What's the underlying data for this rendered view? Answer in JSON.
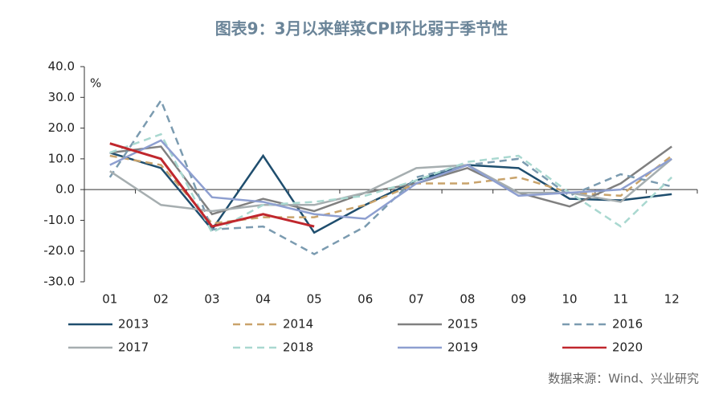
{
  "chart_data": {
    "type": "line",
    "title": "图表9：3月以来鲜菜CPI环比弱于季节性",
    "y_unit": "%",
    "source": "数据来源：Wind、兴业研究",
    "categories": [
      "01",
      "02",
      "03",
      "04",
      "05",
      "06",
      "07",
      "08",
      "09",
      "10",
      "11",
      "12"
    ],
    "ylim": [
      -30,
      40
    ],
    "yticks": [
      {
        "value": 40,
        "label": "40.0"
      },
      {
        "value": 30,
        "label": "30.0"
      },
      {
        "value": 20,
        "label": "20.0"
      },
      {
        "value": 10,
        "label": "10.0"
      },
      {
        "value": 0,
        "label": "0.0"
      },
      {
        "value": -10,
        "label": "-10.0"
      },
      {
        "value": -20,
        "label": "-20.0"
      },
      {
        "value": -30,
        "label": "-30.0"
      }
    ],
    "legend": "bottom",
    "series": [
      {
        "name": "2013",
        "color": "#1f4e6e",
        "dash": false,
        "values": [
          12,
          7,
          -13,
          11,
          -14,
          -5,
          3,
          8,
          7,
          -3,
          -3.5,
          -1.5
        ]
      },
      {
        "name": "2014",
        "color": "#c9a36b",
        "dash": true,
        "values": [
          11,
          8,
          -11,
          -9,
          -9,
          -5,
          2,
          2,
          4,
          -1,
          -2,
          11
        ]
      },
      {
        "name": "2015",
        "color": "#808080",
        "dash": false,
        "values": [
          12,
          14,
          -8,
          -3,
          -7,
          -1,
          2,
          7,
          -1,
          -5.5,
          2,
          14
        ]
      },
      {
        "name": "2016",
        "color": "#7b9bb0",
        "dash": true,
        "values": [
          4,
          29,
          -13,
          -12,
          -21,
          -12,
          4,
          8,
          10,
          -2,
          5,
          1
        ]
      },
      {
        "name": "2017",
        "color": "#a6aeb0",
        "dash": false,
        "values": [
          6,
          -5,
          -7,
          -5,
          -5,
          -1,
          7,
          8,
          -1,
          -1,
          -4,
          10
        ]
      },
      {
        "name": "2018",
        "color": "#a9d8d0",
        "dash": true,
        "values": [
          12,
          18,
          -14,
          -5,
          -4,
          -2,
          3,
          9,
          11,
          -1,
          -12,
          4
        ]
      },
      {
        "name": "2019",
        "color": "#8e9fd0",
        "dash": false,
        "values": [
          8,
          16,
          -2.5,
          -4,
          -8,
          -9.5,
          2,
          8,
          -2,
          -1,
          0,
          10
        ]
      },
      {
        "name": "2020",
        "color": "#c0272d",
        "dash": false,
        "values": [
          15,
          10,
          -12,
          -8,
          -12,
          null,
          null,
          null,
          null,
          null,
          null,
          null
        ]
      }
    ]
  }
}
